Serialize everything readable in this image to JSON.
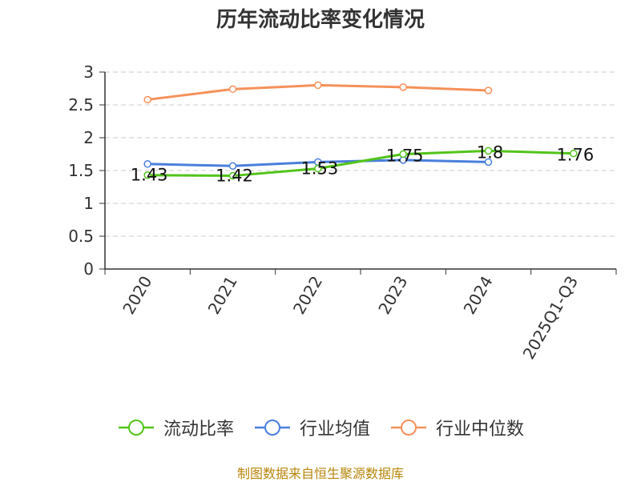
{
  "chart_data": {
    "type": "line",
    "title": "历年流动比率变化情况",
    "categories": [
      "2020",
      "2021",
      "2022",
      "2023",
      "2024",
      "2025Q1-Q3"
    ],
    "ylim": [
      0,
      3
    ],
    "yticks": [
      "0",
      "0.5",
      "1",
      "1.5",
      "2",
      "2.5",
      "3"
    ],
    "grid": true,
    "legend_position": "bottom",
    "series": [
      {
        "name": "流动比率",
        "color": "#52c41a",
        "values": [
          1.43,
          1.42,
          1.53,
          1.75,
          1.8,
          1.76
        ],
        "labels": [
          "1.43",
          "1.42",
          "1.53",
          "1.75",
          "1.8",
          "1.76"
        ]
      },
      {
        "name": "行业均值",
        "color": "#4a7fdc",
        "values": [
          1.6,
          1.57,
          1.63,
          1.66,
          1.63,
          null
        ]
      },
      {
        "name": "行业中位数",
        "color": "#f5915a",
        "values": [
          2.58,
          2.74,
          2.8,
          2.77,
          2.72,
          null
        ]
      }
    ]
  },
  "source": "制图数据来自恒生聚源数据库"
}
